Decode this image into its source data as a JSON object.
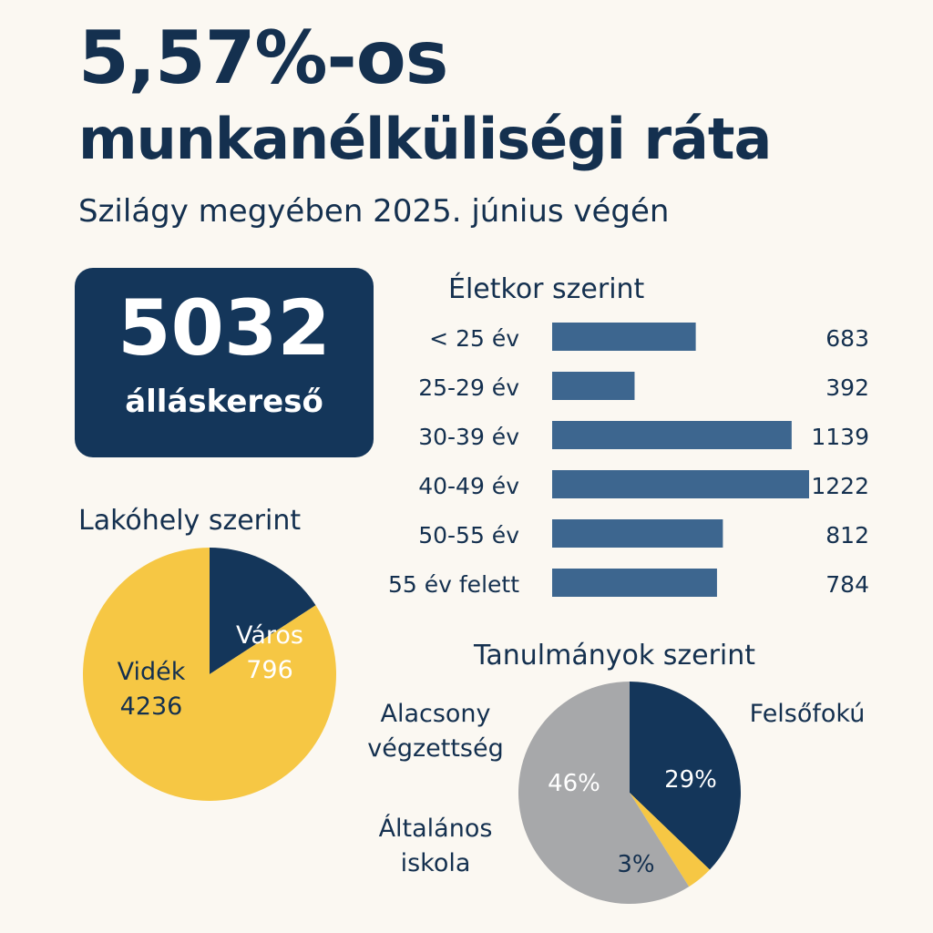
{
  "header": {
    "title_line1": "5,57%-os",
    "title_line2": "munkanélküliségi ráta",
    "subtitle": "Szilágy megyében 2025. június végén"
  },
  "kpi": {
    "value": "5032",
    "label": "álláskereső"
  },
  "colors": {
    "navy": "#14365a",
    "bar": "#3d668f",
    "yellow": "#f6c744",
    "gray": "#a7a8aa",
    "bg": "#fbf8f2"
  },
  "chart_data": [
    {
      "type": "bar",
      "orientation": "horizontal",
      "title": "Életkor szerint",
      "categories": [
        "< 25 év",
        "25-29 év",
        "30-39 év",
        "40-49 év",
        "50-55 év",
        "55 év felett"
      ],
      "values": [
        683,
        392,
        1139,
        1222,
        812,
        784
      ],
      "data_labels": [
        "683",
        "392",
        "1139",
        "1222",
        "812",
        "784"
      ]
    },
    {
      "type": "pie",
      "title": "Lakóhely szerint",
      "slices": [
        {
          "label": "Város",
          "value": 796,
          "value_label": "796",
          "color": "#14365a",
          "text_color": "#ffffff"
        },
        {
          "label": "Vidék",
          "value": 4236,
          "value_label": "4236",
          "color": "#f6c744",
          "text_color": "#14304f"
        }
      ]
    },
    {
      "type": "pie",
      "title": "Tanulmányok szerint",
      "slices": [
        {
          "label": "Felsőfokú",
          "value": 29,
          "value_label": "29%",
          "color": "#14365a",
          "text_color": "#ffffff"
        },
        {
          "label": "Általános iskola",
          "value": 3,
          "value_label": "3%",
          "color": "#f6c744",
          "text_color": "#14304f"
        },
        {
          "label": "Alacsony végzettség",
          "value": 46,
          "value_label": "46%",
          "color": "#a7a8aa",
          "text_color": "#ffffff"
        }
      ]
    }
  ]
}
